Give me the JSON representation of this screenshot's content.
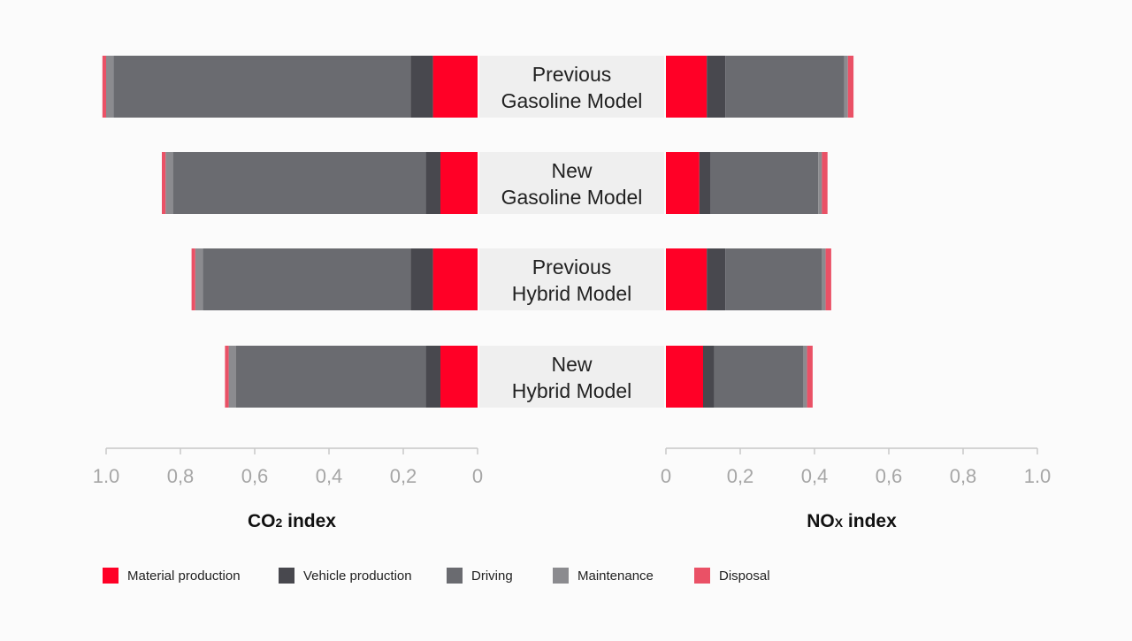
{
  "chart_data": {
    "type": "bar",
    "orientation": "horizontal-butterfly",
    "stacked": true,
    "categories": [
      [
        "Previous",
        "Gasoline Model"
      ],
      [
        "New",
        "Gasoline Model"
      ],
      [
        "Previous",
        "Hybrid Model"
      ],
      [
        "New",
        "Hybrid Model"
      ]
    ],
    "panels": [
      {
        "id": "co2",
        "title": "CO",
        "title_sub": "2",
        "title_suffix": " index",
        "direction": "left",
        "xlim": [
          0,
          1.0
        ],
        "ticks": [
          "0",
          "0,2",
          "0,4",
          "0,6",
          "0,8",
          "1.0"
        ],
        "series": [
          {
            "name": "Material production",
            "values": [
              0.12,
              0.1,
              0.12,
              0.1
            ]
          },
          {
            "name": "Vehicle production",
            "values": [
              0.06,
              0.04,
              0.06,
              0.04
            ]
          },
          {
            "name": "Driving",
            "values": [
              0.8,
              0.68,
              0.56,
              0.51
            ]
          },
          {
            "name": "Maintenance",
            "values": [
              0.02,
              0.02,
              0.02,
              0.02
            ]
          },
          {
            "name": "Disposal",
            "values": [
              0.01,
              0.01,
              0.01,
              0.01
            ]
          }
        ]
      },
      {
        "id": "nox",
        "title": "NO",
        "title_sub": "X",
        "title_suffix": " index",
        "direction": "right",
        "xlim": [
          0,
          1.0
        ],
        "ticks": [
          "0",
          "0,2",
          "0,4",
          "0,6",
          "0,8",
          "1.0"
        ],
        "series": [
          {
            "name": "Material production",
            "values": [
              0.11,
              0.09,
              0.11,
              0.1
            ]
          },
          {
            "name": "Vehicle production",
            "values": [
              0.05,
              0.03,
              0.05,
              0.03
            ]
          },
          {
            "name": "Driving",
            "values": [
              0.32,
              0.29,
              0.26,
              0.24
            ]
          },
          {
            "name": "Maintenance",
            "values": [
              0.01,
              0.01,
              0.01,
              0.01
            ]
          },
          {
            "name": "Disposal",
            "values": [
              0.015,
              0.015,
              0.015,
              0.015
            ]
          }
        ]
      }
    ],
    "legend": [
      {
        "name": "Material production",
        "color": "#ff0026"
      },
      {
        "name": "Vehicle production",
        "color": "#48484e"
      },
      {
        "name": "Driving",
        "color": "#6a6b70"
      },
      {
        "name": "Maintenance",
        "color": "#8b8b8f"
      },
      {
        "name": "Disposal",
        "color": "#ea5166"
      }
    ],
    "legend_position": "bottom-left",
    "grid": false
  },
  "colors": {
    "label_box": "#efefef",
    "axis": "#c8c8c8",
    "tick_text": "#a6a6a6"
  }
}
